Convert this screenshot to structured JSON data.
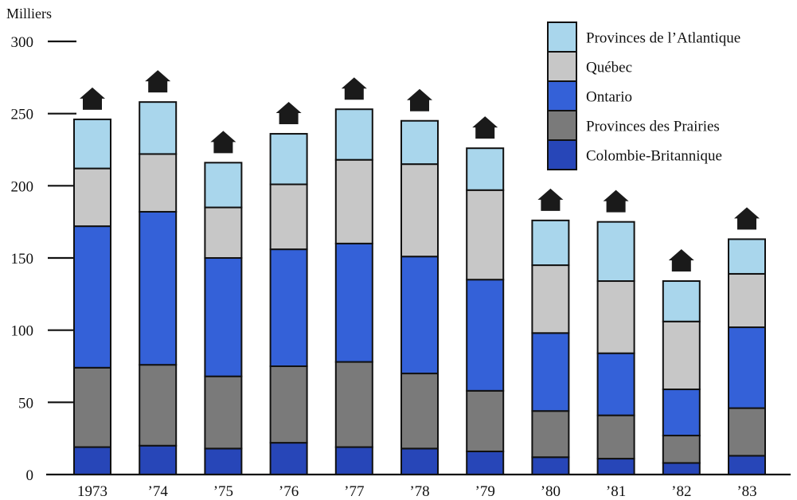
{
  "chart_data": {
    "type": "bar",
    "stacked": true,
    "ylabel": "Milliers",
    "ylim": [
      0,
      300
    ],
    "yticks": [
      0,
      50,
      100,
      150,
      200,
      250,
      300
    ],
    "categories": [
      "1973",
      "’74",
      "’75",
      "’76",
      "’77",
      "’78",
      "’79",
      "’80",
      "’81",
      "’82",
      "’83"
    ],
    "series": [
      {
        "name": "Colombie-Britannique",
        "color": "#2746b8",
        "values": [
          19,
          20,
          18,
          22,
          19,
          18,
          16,
          12,
          11,
          8,
          13
        ]
      },
      {
        "name": "Provinces des Prairies",
        "color": "#7a7a7a",
        "values": [
          55,
          56,
          50,
          53,
          59,
          52,
          42,
          32,
          30,
          19,
          33
        ]
      },
      {
        "name": "Ontario",
        "color": "#3461d8",
        "values": [
          98,
          106,
          82,
          81,
          82,
          81,
          77,
          54,
          43,
          32,
          56
        ]
      },
      {
        "name": "Québec",
        "color": "#c7c7c7",
        "values": [
          40,
          40,
          35,
          45,
          58,
          64,
          62,
          47,
          50,
          47,
          37
        ]
      },
      {
        "name": "Provinces de l’Atlantique",
        "color": "#a9d6ec",
        "values": [
          34,
          36,
          31,
          35,
          35,
          30,
          29,
          31,
          41,
          28,
          24
        ]
      }
    ],
    "legend_position": "top-right",
    "legend_order": [
      "Provinces de l’Atlantique",
      "Québec",
      "Ontario",
      "Provinces des Prairies",
      "Colombie-Britannique"
    ],
    "house_icon": "house-icon",
    "grid": false
  }
}
